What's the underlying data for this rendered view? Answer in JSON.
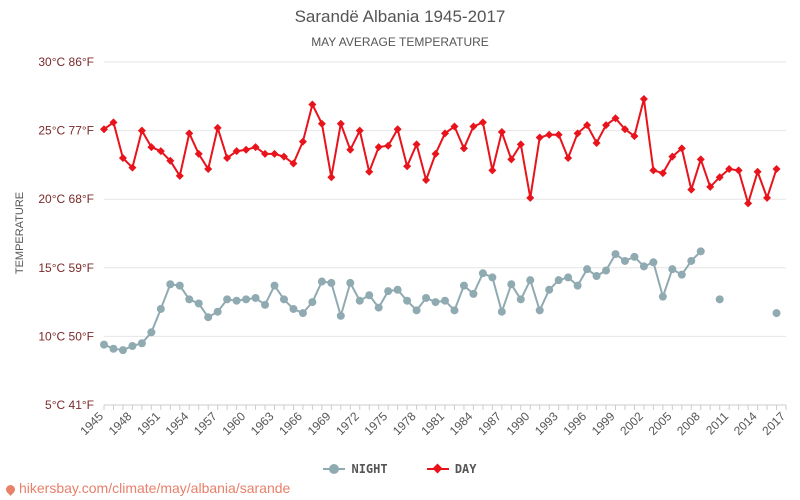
{
  "chart_data": {
    "type": "line",
    "title": "Sarandë Albania 1945-2017",
    "subtitle": "MAY AVERAGE TEMPERATURE",
    "ylabel": "TEMPERATURE",
    "xlabel": "",
    "ylim": [
      5,
      30
    ],
    "xlim": [
      1945,
      2017
    ],
    "yticks": [
      5,
      10,
      15,
      20,
      25,
      30
    ],
    "ytick_labels": [
      "5°C 41°F",
      "10°C 50°F",
      "15°C 59°F",
      "20°C 68°F",
      "25°C 77°F",
      "30°C 86°F"
    ],
    "xticks": [
      1945,
      1948,
      1951,
      1954,
      1957,
      1960,
      1963,
      1966,
      1969,
      1972,
      1975,
      1978,
      1981,
      1984,
      1987,
      1990,
      1993,
      1996,
      1999,
      2002,
      2005,
      2008,
      2011,
      2014,
      2017
    ],
    "years": [
      1945,
      1946,
      1947,
      1948,
      1949,
      1950,
      1951,
      1952,
      1953,
      1954,
      1955,
      1956,
      1957,
      1958,
      1959,
      1960,
      1961,
      1962,
      1963,
      1964,
      1965,
      1966,
      1967,
      1968,
      1969,
      1970,
      1971,
      1972,
      1973,
      1974,
      1975,
      1976,
      1977,
      1978,
      1979,
      1980,
      1981,
      1982,
      1983,
      1984,
      1985,
      1986,
      1987,
      1988,
      1989,
      1990,
      1991,
      1992,
      1993,
      1994,
      1995,
      1996,
      1997,
      1998,
      1999,
      2000,
      2001,
      2002,
      2003,
      2004,
      2005,
      2006,
      2007,
      2008,
      2009,
      2010,
      2011,
      2012,
      2013,
      2014,
      2015,
      2016,
      2017
    ],
    "series": [
      {
        "name": "NIGHT",
        "color": "#90aab2",
        "marker": "circle",
        "values": [
          9.4,
          9.1,
          9.0,
          9.3,
          9.5,
          10.3,
          12.0,
          13.8,
          13.7,
          12.7,
          12.4,
          11.4,
          11.8,
          12.7,
          12.6,
          12.7,
          12.8,
          12.3,
          13.7,
          12.7,
          12.0,
          11.7,
          12.5,
          14.0,
          13.9,
          11.5,
          13.9,
          12.6,
          13.0,
          12.1,
          13.3,
          13.4,
          12.6,
          11.9,
          12.8,
          12.5,
          12.6,
          11.9,
          13.7,
          13.1,
          14.6,
          14.3,
          11.8,
          13.8,
          12.7,
          14.1,
          11.9,
          13.4,
          14.1,
          14.3,
          13.7,
          14.9,
          14.4,
          14.8,
          16.0,
          15.5,
          15.8,
          15.1,
          15.4,
          12.9,
          14.9,
          14.5,
          15.5,
          16.2,
          null,
          12.7,
          null,
          null,
          null,
          null,
          null,
          11.7,
          null
        ]
      },
      {
        "name": "DAY",
        "color": "#e8131b",
        "marker": "diamond",
        "values": [
          25.1,
          25.6,
          23.0,
          22.3,
          25.0,
          23.8,
          23.5,
          22.8,
          21.7,
          24.8,
          23.3,
          22.2,
          25.2,
          23.0,
          23.5,
          23.6,
          23.8,
          23.3,
          23.3,
          23.1,
          22.6,
          24.2,
          26.9,
          25.5,
          21.6,
          25.5,
          23.6,
          25.0,
          22.0,
          23.8,
          23.9,
          25.1,
          22.4,
          24.0,
          21.4,
          23.3,
          24.8,
          25.3,
          23.7,
          25.3,
          25.6,
          22.1,
          24.9,
          22.9,
          24.0,
          20.1,
          24.5,
          24.7,
          24.7,
          23.0,
          24.8,
          25.4,
          24.1,
          25.4,
          25.9,
          25.1,
          24.6,
          27.3,
          22.1,
          21.9,
          23.1,
          23.7,
          20.7,
          22.9,
          20.9,
          21.6,
          22.2,
          22.1,
          19.7,
          22.0,
          20.1,
          22.2,
          null
        ]
      }
    ],
    "legend_position": "bottom-center",
    "grid": true
  },
  "legend": {
    "night_label": "NIGHT",
    "day_label": "DAY"
  },
  "source": "hikersbay.com/climate/may/albania/sarande"
}
